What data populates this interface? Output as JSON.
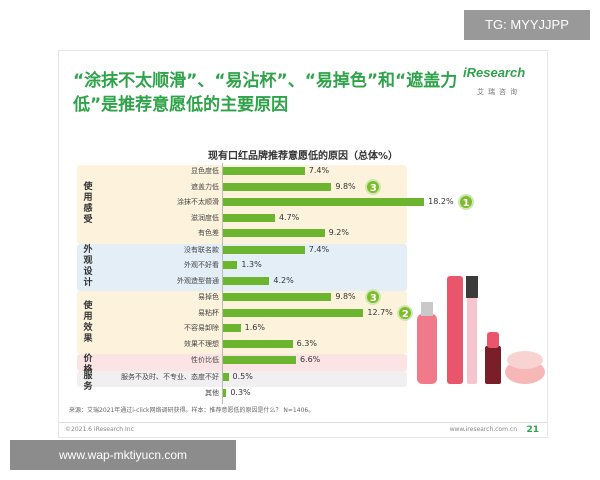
{
  "watermark_top": "TG: MYYJJPP",
  "watermark_bottom": "www.wap-mktiyucn.com",
  "headline": "“涂抹不太顺滑”、“易沾杯”、“易掉色”和“遮盖力低”是推荐意愿低的主要原因",
  "logo": {
    "word": "iResearch",
    "sub": "艾瑞咨询"
  },
  "chart_data": {
    "type": "bar",
    "orientation": "horizontal",
    "title": "现有口红品牌推荐意愿低的原因（总体%）",
    "unit": "%",
    "groups": [
      {
        "name": "使用感受",
        "categories": [
          "显色度低",
          "遮盖力低",
          "涂抹不太顺滑",
          "滋润度低",
          "有色差"
        ],
        "values": [
          7.4,
          9.8,
          18.2,
          4.7,
          9.2
        ]
      },
      {
        "name": "外观设计",
        "categories": [
          "没有联名款",
          "外观不好看",
          "外观造型普通"
        ],
        "values": [
          7.4,
          1.3,
          4.2
        ]
      },
      {
        "name": "使用效果",
        "categories": [
          "易掉色",
          "易粘杯",
          "不容易卸除",
          "效果不理想"
        ],
        "values": [
          9.8,
          12.7,
          1.6,
          6.3
        ]
      },
      {
        "name": "价格",
        "categories": [
          "性价比低"
        ],
        "values": [
          6.6
        ]
      },
      {
        "name": "服务",
        "categories": [
          "服务不及时、不专业、态度不好"
        ],
        "values": [
          0.5
        ]
      },
      {
        "name": "",
        "categories": [
          "其他"
        ],
        "values": [
          0.3
        ]
      }
    ],
    "labels": [
      "7.4%",
      "9.8%",
      "18.2%",
      "4.7%",
      "9.2%",
      "7.4%",
      "1.3%",
      "4.2%",
      "9.8%",
      "12.7%",
      "1.6%",
      "6.3%",
      "6.6%",
      "0.5%",
      "0.3%"
    ],
    "rank_badges": [
      {
        "category": "涂抹不太顺滑",
        "rank": "1"
      },
      {
        "category": "易粘杯",
        "rank": "2"
      },
      {
        "category": "遮盖力低",
        "rank": "3"
      },
      {
        "category": "易掉色",
        "rank": "3"
      }
    ],
    "colors": {
      "bar": "#6cb52e",
      "badge": "#7dbb2f",
      "band_use": "#fdf3dc",
      "band_look": "#e3eef7",
      "band_effect": "#fdf3dc",
      "band_price": "#fde4e4",
      "band_service": "#f0f0f0"
    }
  },
  "note": "来源：艾瑞2021年通过i-click网络调研获得。样本：推荐意愿低的原因是什么？ N=1406。",
  "footer": {
    "left": "©2021.6 iResearch Inc",
    "right": "www.iresearch.com.cn",
    "page": "21"
  }
}
